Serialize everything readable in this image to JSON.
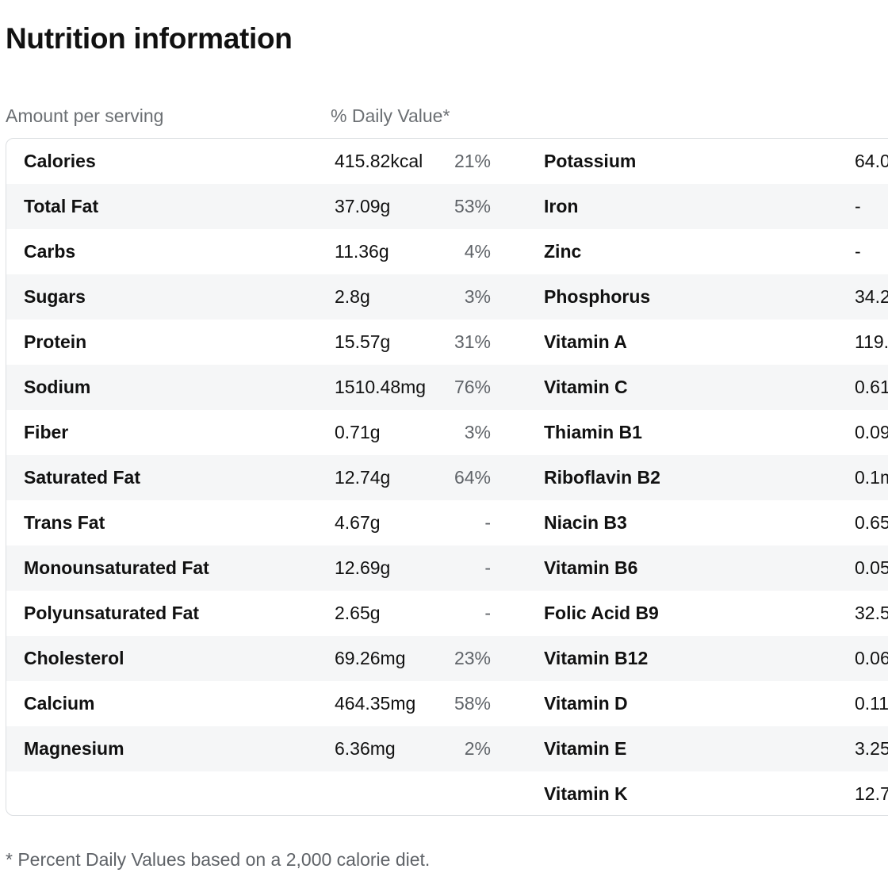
{
  "title": "Nutrition information",
  "header": {
    "amount": "Amount per serving",
    "daily": "% Daily Value*"
  },
  "rows": [
    {
      "name": "Calories",
      "value": "415.82kcal",
      "pct": "21%",
      "rname": "Potassium",
      "rvalue": "64.0"
    },
    {
      "name": "Total Fat",
      "value": "37.09g",
      "pct": "53%",
      "rname": "Iron",
      "rvalue": "-"
    },
    {
      "name": "Carbs",
      "value": "11.36g",
      "pct": "4%",
      "rname": "Zinc",
      "rvalue": "-"
    },
    {
      "name": "Sugars",
      "value": "2.8g",
      "pct": "3%",
      "rname": "Phosphorus",
      "rvalue": "34.2"
    },
    {
      "name": "Protein",
      "value": "15.57g",
      "pct": "31%",
      "rname": "Vitamin A",
      "rvalue": "119."
    },
    {
      "name": "Sodium",
      "value": "1510.48mg",
      "pct": "76%",
      "rname": "Vitamin C",
      "rvalue": "0.61"
    },
    {
      "name": "Fiber",
      "value": "0.71g",
      "pct": "3%",
      "rname": "Thiamin B1",
      "rvalue": "0.09"
    },
    {
      "name": "Saturated Fat",
      "value": "12.74g",
      "pct": "64%",
      "rname": "Riboflavin B2",
      "rvalue": "0.1m"
    },
    {
      "name": "Trans Fat",
      "value": "4.67g",
      "pct": "-",
      "rname": "Niacin B3",
      "rvalue": "0.65"
    },
    {
      "name": "Monounsaturated Fat",
      "value": "12.69g",
      "pct": "-",
      "rname": "Vitamin B6",
      "rvalue": "0.05"
    },
    {
      "name": "Polyunsaturated Fat",
      "value": "2.65g",
      "pct": "-",
      "rname": "Folic Acid B9",
      "rvalue": "32.5"
    },
    {
      "name": "Cholesterol",
      "value": "69.26mg",
      "pct": "23%",
      "rname": "Vitamin B12",
      "rvalue": "0.06"
    },
    {
      "name": "Calcium",
      "value": "464.35mg",
      "pct": "58%",
      "rname": "Vitamin D",
      "rvalue": "0.11"
    },
    {
      "name": "Magnesium",
      "value": "6.36mg",
      "pct": "2%",
      "rname": "Vitamin E",
      "rvalue": "3.25"
    },
    {
      "name": "",
      "value": "",
      "pct": "",
      "rname": "Vitamin K",
      "rvalue": "12.7"
    }
  ],
  "footnote": "* Percent Daily Values based on a 2,000 calorie diet."
}
